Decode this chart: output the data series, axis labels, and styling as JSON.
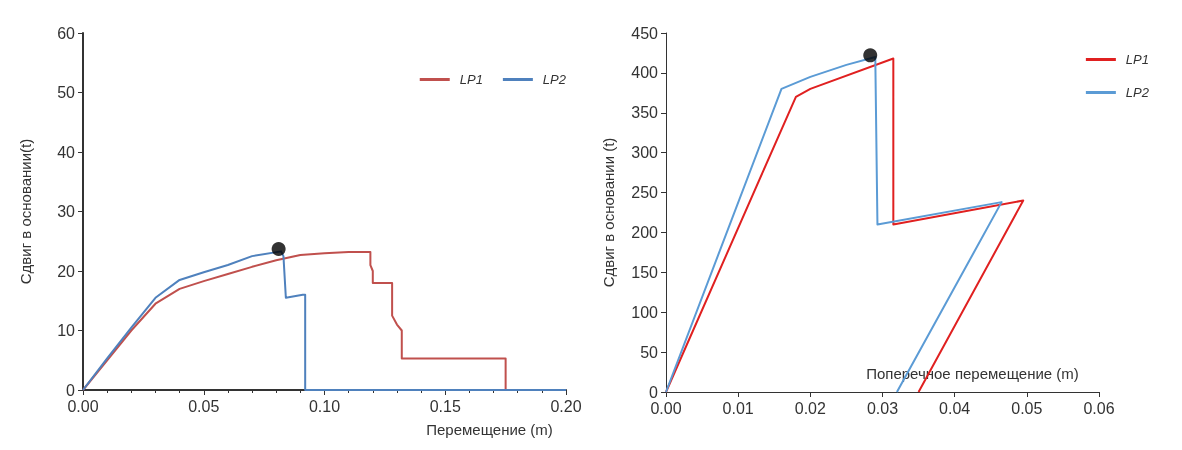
{
  "chart_data": [
    {
      "type": "line",
      "xlabel": "Перемещение (m)",
      "ylabel": "Сдвиг в основании(t)",
      "xlim": [
        0,
        0.2
      ],
      "xticks": [
        {
          "value": 0,
          "label": "0.00"
        },
        {
          "value": 0.05,
          "label": "0.05"
        },
        {
          "value": 0.1,
          "label": "0.10"
        },
        {
          "value": 0.15,
          "label": "0.15"
        },
        {
          "value": 0.2,
          "label": "0.20"
        }
      ],
      "ylim": [
        0,
        60
      ],
      "yticks": [
        0,
        10,
        20,
        30,
        40,
        50,
        60
      ],
      "grid": false,
      "legend": "top right",
      "marker": "none",
      "line_style": "solid",
      "series": [
        {
          "name": "LP1",
          "color": "#c0504d",
          "x": [
            0,
            0.01,
            0.02,
            0.03,
            0.04,
            0.05,
            0.06,
            0.07,
            0.08,
            0.09,
            0.1,
            0.11,
            0.119,
            0.119,
            0.12,
            0.12,
            0.128,
            0.128,
            0.13,
            0.132,
            0.132,
            0.15,
            0.175,
            0.175,
            0.2
          ],
          "values": [
            0,
            5,
            10,
            14.5,
            17,
            18.3,
            19.5,
            20.7,
            21.8,
            22.7,
            23,
            23.2,
            23.2,
            21,
            20,
            18,
            18,
            12.5,
            11,
            10,
            5.3,
            5.3,
            5.3,
            0,
            0
          ]
        },
        {
          "name": "LP2",
          "color": "#4f81bd",
          "x": [
            0,
            0.01,
            0.02,
            0.03,
            0.04,
            0.05,
            0.06,
            0.07,
            0.082,
            0.083,
            0.084,
            0.091,
            0.092,
            0.092,
            0.2
          ],
          "values": [
            0,
            5.3,
            10.5,
            15.5,
            18.5,
            19.8,
            21,
            22.5,
            23.3,
            22.5,
            15.5,
            16,
            16,
            0,
            0
          ]
        },
        {
          "type": "scatter",
          "color": "#000000",
          "x": [
            0.081
          ],
          "values": [
            23.7
          ],
          "marker": "circle"
        }
      ]
    },
    {
      "type": "line",
      "xlabel": "Поперечное перемещение (m)",
      "ylabel": "Сдвиг в основании (t)",
      "xlim": [
        0,
        0.06
      ],
      "xticks": [
        {
          "value": 0,
          "label": "0.00"
        },
        {
          "value": 0.01,
          "label": "0.01"
        },
        {
          "value": 0.02,
          "label": "0.02"
        },
        {
          "value": 0.03,
          "label": "0.03"
        },
        {
          "value": 0.04,
          "label": "0.04"
        },
        {
          "value": 0.05,
          "label": "0.05"
        },
        {
          "value": 0.06,
          "label": "0.06"
        }
      ],
      "ylim": [
        0,
        450
      ],
      "yticks": [
        0,
        50,
        100,
        150,
        200,
        250,
        300,
        350,
        400,
        450
      ],
      "grid": false,
      "legend": "top right",
      "marker": "none",
      "line_style": "solid",
      "series": [
        {
          "name": "LP1",
          "color": "#e02020",
          "x": [
            0,
            0.018,
            0.02,
            0.0315,
            0.0315,
            0.0495,
            0.035
          ],
          "values": [
            0,
            370,
            380,
            418,
            210,
            240,
            0
          ]
        },
        {
          "name": "LP2",
          "color": "#5b9bd5",
          "x": [
            0,
            0.016,
            0.02,
            0.025,
            0.029,
            0.0293,
            0.0465,
            0.032
          ],
          "values": [
            0,
            380,
            395,
            410,
            420,
            210,
            238,
            0
          ]
        },
        {
          "type": "scatter",
          "color": "#000000",
          "x": [
            0.0283
          ],
          "values": [
            422
          ],
          "marker": "circle"
        }
      ]
    }
  ]
}
